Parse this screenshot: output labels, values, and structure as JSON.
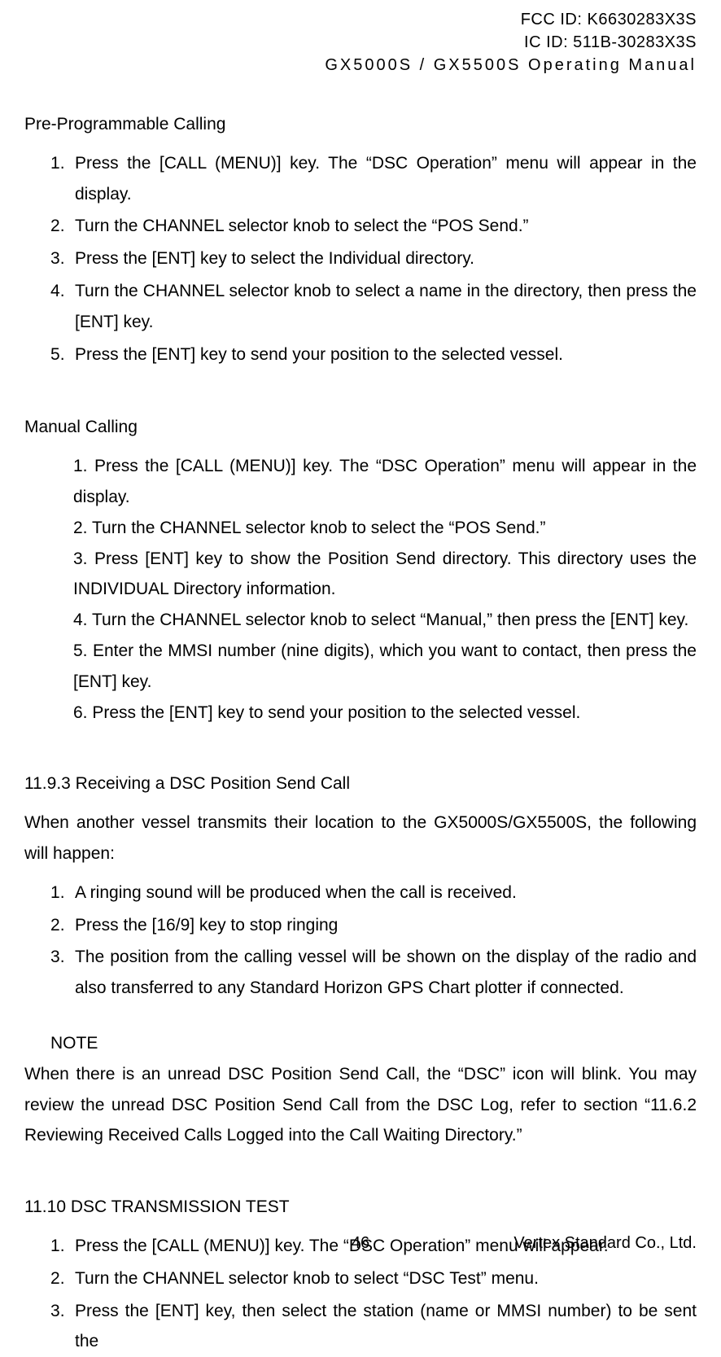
{
  "header": {
    "fcc_id": "FCC ID: K6630283X3S",
    "ic_id": "IC ID: 511B-30283X3S",
    "manual_title": "GX5000S / GX5500S  Operating Manual"
  },
  "sections": {
    "pre_programmable": {
      "title": "Pre-Programmable Calling",
      "items": [
        "Press the [CALL (MENU)] key. The “DSC Operation” menu will appear in the display.",
        "Turn the CHANNEL selector knob to select the “POS Send.”",
        "Press the [ENT] key to select the Individual directory.",
        "Turn the CHANNEL selector knob to select a name in the directory, then press the [ENT] key.",
        "Press the [ENT] key to send your position to the selected vessel."
      ]
    },
    "manual_calling": {
      "title": "Manual Calling",
      "items": [
        "1. Press the [CALL (MENU)] key. The “DSC Operation” menu will appear in the display.",
        "2. Turn the CHANNEL selector knob to select the “POS Send.”",
        "3. Press [ENT] key to show the Position Send directory. This directory uses the INDIVIDUAL Directory information.",
        "4. Turn the CHANNEL selector knob to select “Manual,” then press the [ENT] key.",
        "5. Enter the MMSI number (nine digits), which you want to contact, then press the [ENT] key.",
        "6. Press the [ENT] key to send your position to the selected vessel."
      ]
    },
    "receiving": {
      "title": "11.9.3 Receiving a DSC Position Send Call",
      "intro": "When another vessel transmits their location to the GX5000S/GX5500S, the following will happen:",
      "items": [
        "A ringing sound will be produced when the call is received.",
        "Press the [16/9] key to stop ringing",
        "The position from the calling vessel will be shown on the display of the radio and also transferred to any Standard Horizon GPS Chart plotter if connected."
      ]
    },
    "note": {
      "label": "NOTE",
      "text": "When there is an unread DSC Position Send Call, the “DSC” icon will blink. You may review the unread DSC Position Send Call from the DSC Log, refer to section “11.6.2 Reviewing Received Calls Logged into the Call Waiting Directory.”"
    },
    "transmission_test": {
      "title": "11.10 DSC TRANSMISSION TEST",
      "items": [
        "Press the [CALL (MENU)] key. The “DSC Operation” menu will appear.",
        "Turn the CHANNEL selector knob to select “DSC Test” menu.",
        "Press the [ENT] key, then select the station (name or MMSI number) to be sent the"
      ]
    }
  },
  "footer": {
    "page_number": "46",
    "company": "Vertex Standard Co., Ltd."
  }
}
